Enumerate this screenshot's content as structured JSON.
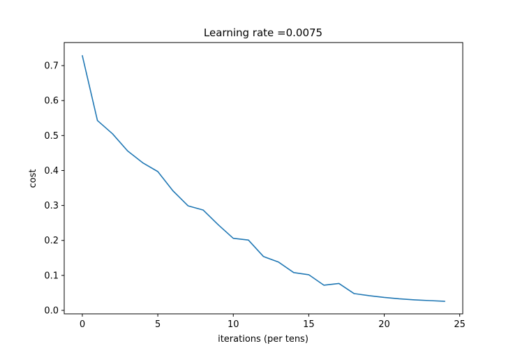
{
  "chart_data": {
    "type": "line",
    "title": "Learning rate =0.0075",
    "xlabel": "iterations (per tens)",
    "ylabel": "cost",
    "xlim": [
      -1.2,
      25.2
    ],
    "ylim": [
      -0.01,
      0.766
    ],
    "xticks": [
      0,
      5,
      10,
      15,
      20,
      25
    ],
    "yticks": [
      0.0,
      0.1,
      0.2,
      0.3,
      0.4,
      0.5,
      0.6,
      0.7
    ],
    "xtick_labels": [
      "0",
      "5",
      "10",
      "15",
      "20",
      "25"
    ],
    "ytick_labels": [
      "0.0",
      "0.1",
      "0.2",
      "0.3",
      "0.4",
      "0.5",
      "0.6",
      "0.7"
    ],
    "grid": false,
    "legend": "none",
    "series": [
      {
        "color": "#1f77b4",
        "x": [
          0,
          1,
          2,
          3,
          4,
          5,
          6,
          7,
          8,
          9,
          10,
          11,
          12,
          13,
          14,
          15,
          16,
          17,
          18,
          19,
          20,
          21,
          22,
          23,
          24
        ],
        "values": [
          0.728,
          0.543,
          0.505,
          0.456,
          0.422,
          0.397,
          0.342,
          0.299,
          0.287,
          0.245,
          0.206,
          0.201,
          0.154,
          0.138,
          0.108,
          0.102,
          0.072,
          0.077,
          0.048,
          0.042,
          0.037,
          0.033,
          0.03,
          0.028,
          0.026
        ]
      }
    ]
  }
}
